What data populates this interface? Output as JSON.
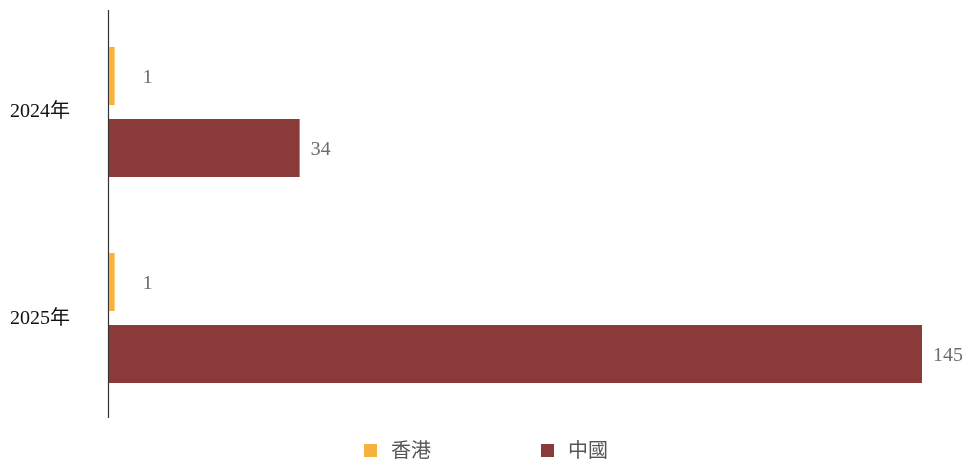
{
  "chart_data": {
    "type": "bar",
    "orientation": "horizontal",
    "categories": [
      "2024年",
      "2025年"
    ],
    "series": [
      {
        "name": "香港",
        "color": "#f4b183",
        "values": [
          1,
          1
        ]
      },
      {
        "name": "中國",
        "color": "#8b3a3a",
        "values": [
          34,
          145
        ]
      }
    ],
    "data_labels": true,
    "grid": false,
    "legend": "bottom-center",
    "xlim": [
      0,
      145
    ]
  },
  "colors": {
    "hong_kong": "#f6b23a",
    "china": "#8b3a3a",
    "axis": "#333333",
    "value_text": "#6b6b6b",
    "category_text": "#111111"
  }
}
